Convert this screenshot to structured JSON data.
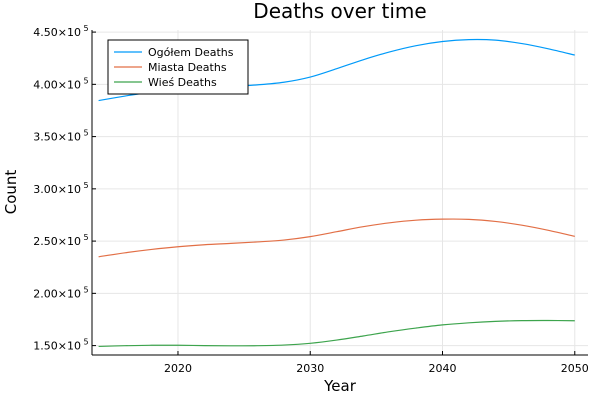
{
  "chart_data": {
    "type": "line",
    "title": "Deaths over time",
    "xlabel": "Year",
    "ylabel": "Count",
    "xlim": [
      2013.5,
      2051
    ],
    "ylim": [
      141000,
      452000
    ],
    "xticks": [
      2020,
      2030,
      2040,
      2050
    ],
    "xtick_labels": [
      "2020",
      "2030",
      "2040",
      "2050"
    ],
    "yticks": [
      150000,
      200000,
      250000,
      300000,
      350000,
      400000,
      450000
    ],
    "ytick_labels": [
      {
        "mantissa": "1.50×10",
        "exp": "5"
      },
      {
        "mantissa": "2.00×10",
        "exp": "5"
      },
      {
        "mantissa": "2.50×10",
        "exp": "5"
      },
      {
        "mantissa": "3.00×10",
        "exp": "5"
      },
      {
        "mantissa": "3.50×10",
        "exp": "5"
      },
      {
        "mantissa": "4.00×10",
        "exp": "5"
      },
      {
        "mantissa": "4.50×10",
        "exp": "5"
      }
    ],
    "grid": true,
    "legend_position": "top-left",
    "series": [
      {
        "name": "Ogółem Deaths",
        "color": "#009af9",
        "x": [
          2014,
          2016,
          2018,
          2020,
          2022,
          2024,
          2026,
          2028,
          2030,
          2032,
          2034,
          2036,
          2038,
          2040,
          2042,
          2044,
          2046,
          2048,
          2050
        ],
        "y": [
          384500,
          388800,
          392700,
          395500,
          397000,
          398000,
          399500,
          402000,
          407000,
          415000,
          423500,
          431000,
          437000,
          441000,
          442800,
          442300,
          439000,
          434000,
          428000
        ]
      },
      {
        "name": "Miasta Deaths",
        "color": "#e26f46",
        "x": [
          2014,
          2016,
          2018,
          2020,
          2022,
          2024,
          2026,
          2028,
          2030,
          2032,
          2034,
          2036,
          2038,
          2040,
          2042,
          2044,
          2046,
          2048,
          2050
        ],
        "y": [
          235000,
          238800,
          242000,
          244600,
          246500,
          247800,
          249200,
          251000,
          254300,
          259000,
          263800,
          267500,
          270000,
          271000,
          270800,
          268800,
          265200,
          260300,
          254500
        ]
      },
      {
        "name": "Wieś Deaths",
        "color": "#3da44d",
        "x": [
          2014,
          2016,
          2018,
          2020,
          2022,
          2024,
          2026,
          2028,
          2030,
          2032,
          2034,
          2036,
          2038,
          2040,
          2042,
          2044,
          2046,
          2048,
          2050
        ],
        "y": [
          149200,
          149900,
          150300,
          150300,
          150000,
          149800,
          149900,
          150500,
          152200,
          155300,
          159200,
          163300,
          166800,
          169800,
          171800,
          173200,
          173900,
          174000,
          173800
        ]
      }
    ]
  }
}
